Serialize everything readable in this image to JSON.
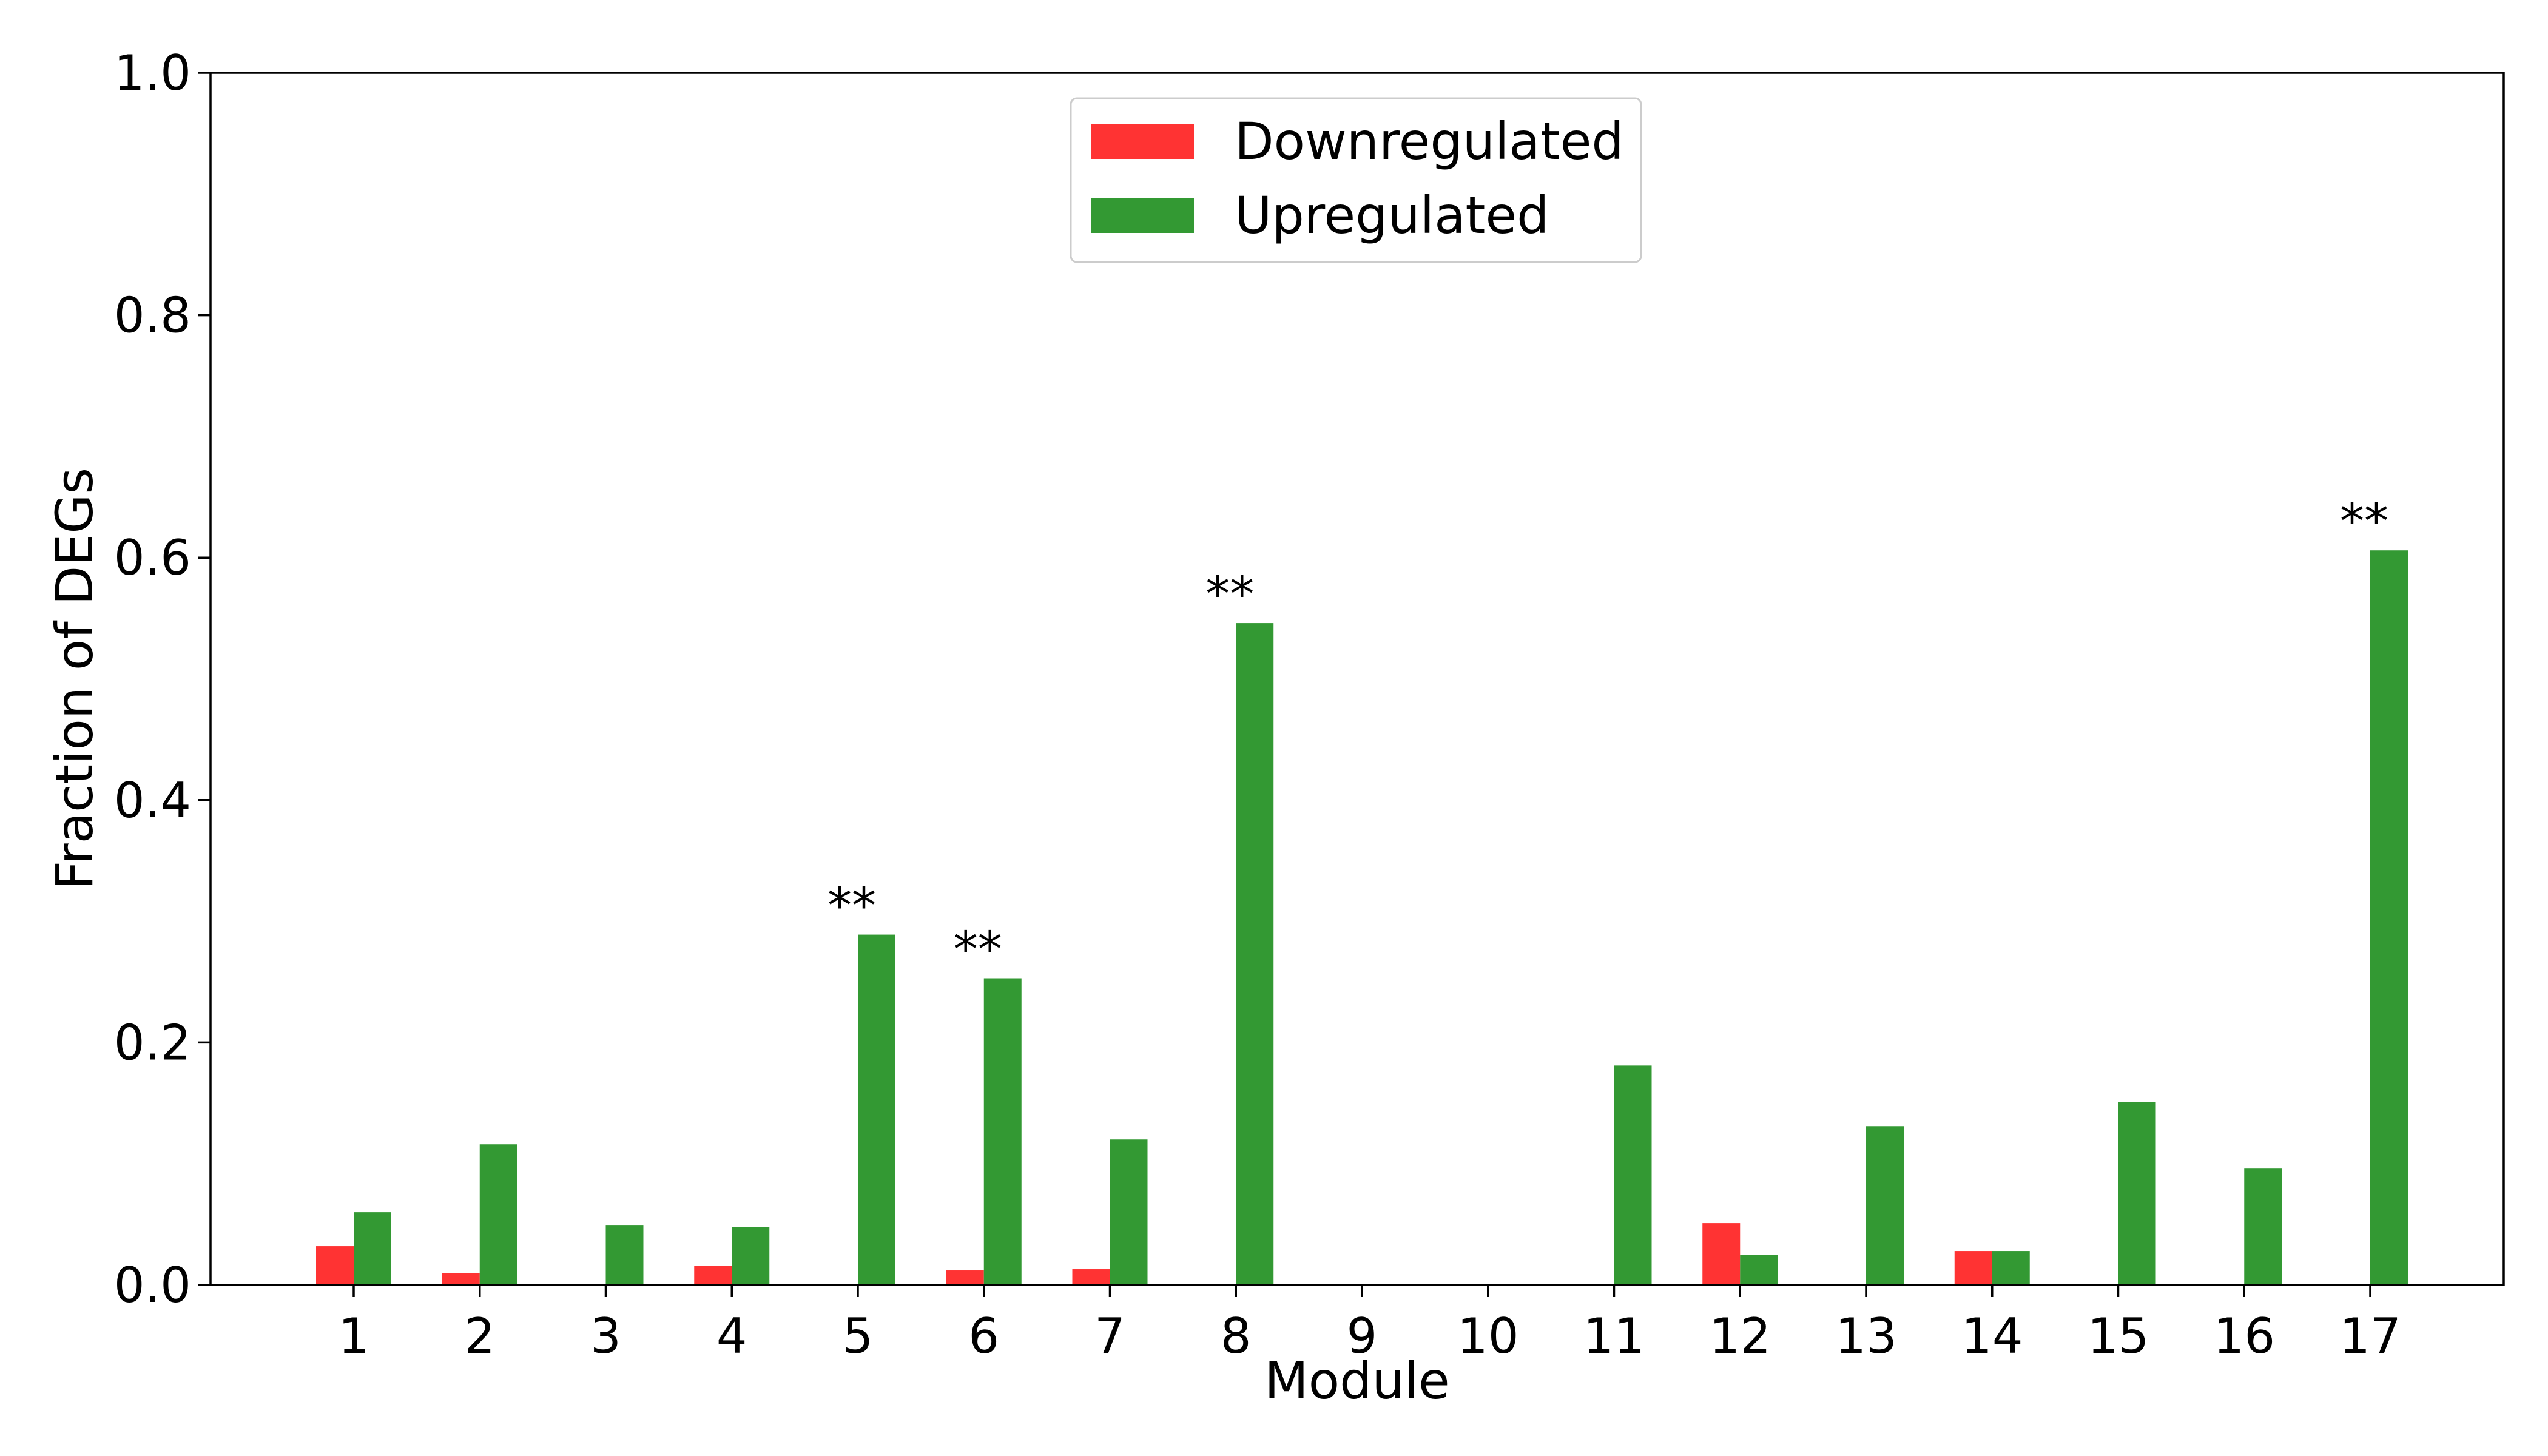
{
  "chart_data": {
    "type": "bar",
    "title": "",
    "xlabel": "Module",
    "ylabel": "Fraction of DEGs",
    "ylim": [
      0,
      1.0
    ],
    "yticks": [
      "0.0",
      "0.2",
      "0.4",
      "0.6",
      "0.8",
      "1.0"
    ],
    "categories": [
      "1",
      "2",
      "3",
      "4",
      "5",
      "6",
      "7",
      "8",
      "9",
      "10",
      "11",
      "12",
      "13",
      "14",
      "15",
      "16",
      "17"
    ],
    "series": [
      {
        "name": "Downregulated",
        "color": "#ff3333",
        "values": [
          0.032,
          0.01,
          0.0,
          0.016,
          0.0,
          0.012,
          0.013,
          0.0,
          0.0,
          0.0,
          0.0,
          0.051,
          0.0,
          0.028,
          0.0,
          0.0,
          0.0
        ]
      },
      {
        "name": "Upregulated",
        "color": "#339933",
        "values": [
          0.06,
          0.116,
          0.049,
          0.048,
          0.289,
          0.253,
          0.12,
          0.546,
          0.0,
          0.0,
          0.181,
          0.025,
          0.131,
          0.028,
          0.151,
          0.096,
          0.606
        ]
      }
    ],
    "annotations": [
      {
        "category": "5",
        "series": "Upregulated",
        "text": "**"
      },
      {
        "category": "6",
        "series": "Upregulated",
        "text": "**"
      },
      {
        "category": "8",
        "series": "Upregulated",
        "text": "**"
      },
      {
        "category": "17",
        "series": "Upregulated",
        "text": "**"
      }
    ],
    "legend": {
      "placement": "top-center"
    },
    "grid": false
  }
}
